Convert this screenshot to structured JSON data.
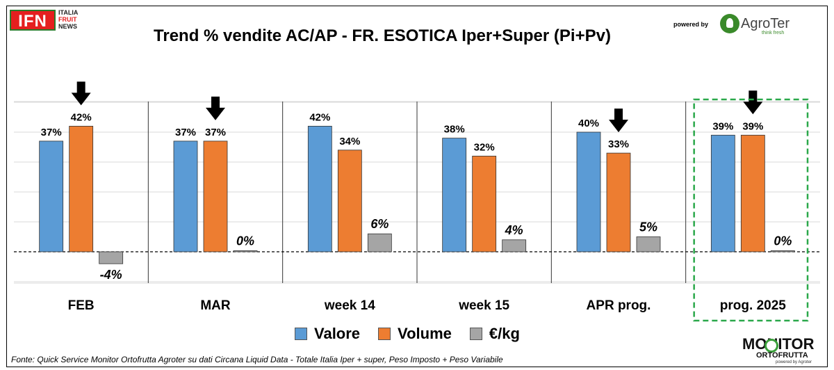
{
  "header": {
    "title": "Trend % vendite AC/AP - FR. ESOTICA  Iper+Super (Pi+Pv)",
    "ifn_logo_text": "IFN",
    "ifn_logo_sub": [
      "ITALIA",
      "FRUIT",
      "NEWS"
    ],
    "powered_by": "powered by",
    "agroter_name": "AgroTer",
    "agroter_tagline": "think fresh"
  },
  "chart_data": {
    "type": "bar",
    "title": "Trend % vendite AC/AP - FR. ESOTICA  Iper+Super (Pi+Pv)",
    "categories": [
      "FEB",
      "MAR",
      "week 14",
      "week 15",
      "APR prog.",
      "prog. 2025"
    ],
    "series": [
      {
        "name": "Valore",
        "color": "#5b9bd5",
        "values": [
          37,
          37,
          42,
          38,
          40,
          39
        ],
        "labels": [
          "37%",
          "37%",
          "42%",
          "38%",
          "40%",
          "39%"
        ]
      },
      {
        "name": "Volume",
        "color": "#ed7d31",
        "values": [
          42,
          37,
          34,
          32,
          33,
          39
        ],
        "labels": [
          "42%",
          "37%",
          "34%",
          "32%",
          "33%",
          "39%"
        ]
      },
      {
        "name": "€/kg",
        "color": "#a5a5a5",
        "values": [
          -4,
          0,
          6,
          4,
          5,
          0
        ],
        "labels": [
          "-4%",
          "0%",
          "6%",
          "4%",
          "5%",
          "0%"
        ]
      }
    ],
    "units": "%",
    "grid": true,
    "zero_line": "dashed",
    "legend_position": "bottom",
    "down_arrows_over": [
      {
        "category": "FEB",
        "series": "Volume"
      },
      {
        "category": "MAR",
        "series": "Volume"
      },
      {
        "category": "APR prog.",
        "series": "Volume"
      },
      {
        "category": "prog. 2025",
        "series": "Volume"
      }
    ],
    "highlighted_category": "prog. 2025",
    "highlight_color": "#2aa84a"
  },
  "legend": {
    "items": [
      {
        "label": "Valore",
        "color": "#5b9bd5"
      },
      {
        "label": "Volume",
        "color": "#ed7d31"
      },
      {
        "label": "€/kg",
        "color": "#a5a5a5"
      }
    ]
  },
  "footer": {
    "source": "Fonte: Quick Service Monitor Ortofrutta Agroter su dati Circana Liquid Data - Totale Italia Iper + super, Peso Imposto + Peso Variabile",
    "monitor_main": "MONITOR",
    "monitor_sub": "ORTOFRUTTA",
    "monitor_by": "powered by Agroter"
  }
}
